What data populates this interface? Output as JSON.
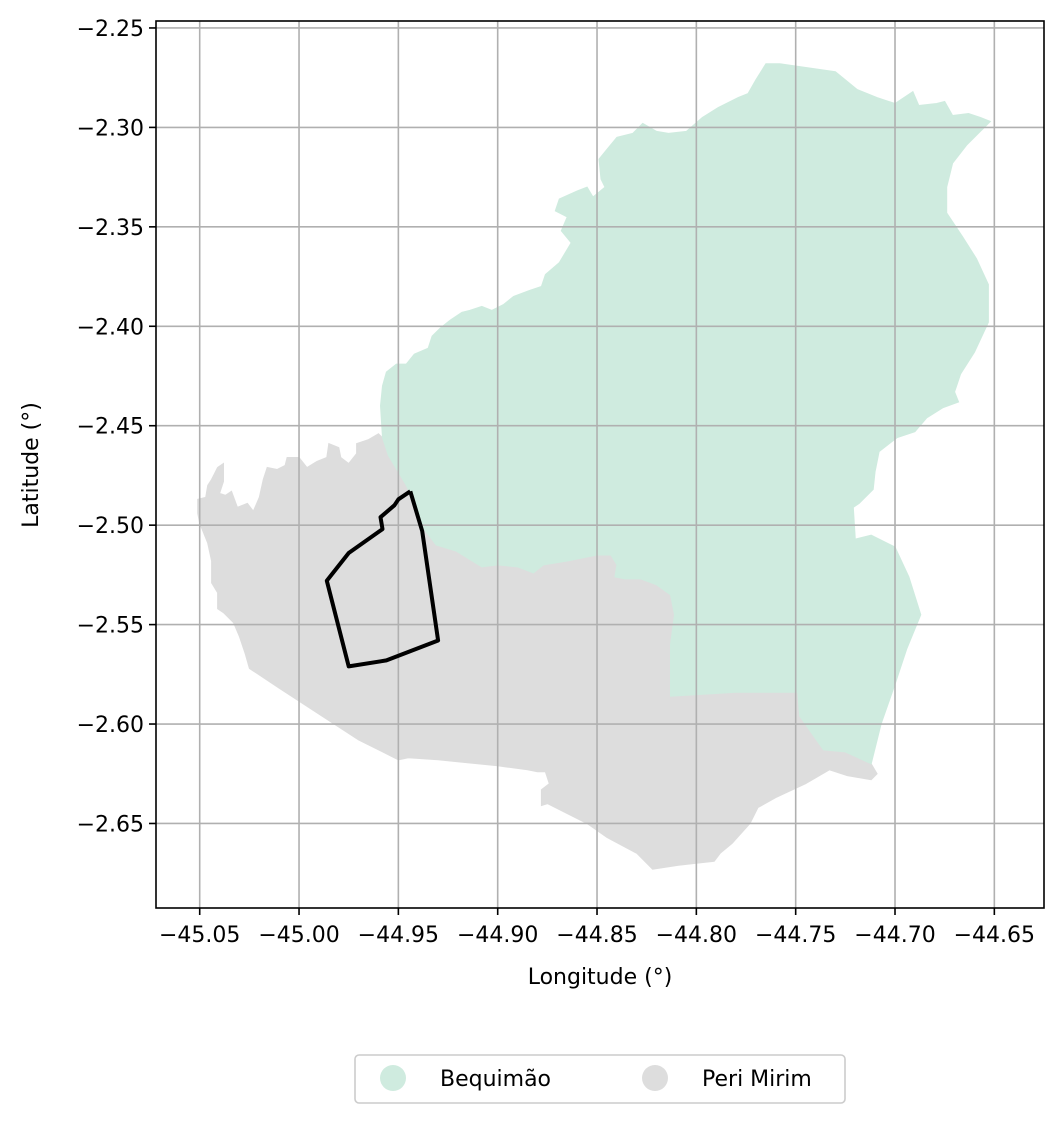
{
  "chart_data": {
    "type": "map",
    "xlabel": "Longitude (°)",
    "ylabel": "Latitude (°)",
    "xlim": [
      -45.072,
      -44.625
    ],
    "ylim": [
      -2.6925,
      -2.2465
    ],
    "grid": true,
    "x_ticks": [
      "−45.05",
      "−45.00",
      "−44.95",
      "−44.90",
      "−44.85",
      "−44.80",
      "−44.75",
      "−44.70",
      "−44.65"
    ],
    "y_ticks": [
      "−2.25",
      "−2.30",
      "−2.35",
      "−2.40",
      "−2.45",
      "−2.50",
      "−2.55",
      "−2.60",
      "−2.65"
    ],
    "legend": {
      "placement": "bottom-center",
      "items": [
        {
          "label": "Bequimão",
          "color": "#cfebdf"
        },
        {
          "label": "Peri Mirim",
          "color": "#dddddd"
        }
      ]
    },
    "regions": [
      {
        "name": "Peri Mirim",
        "color": "#dddddd",
        "coordinates": [
          [
            -45.051,
            -2.487
          ],
          [
            -45.047,
            -2.486
          ],
          [
            -45.046,
            -2.48
          ],
          [
            -45.044,
            -2.477
          ],
          [
            -45.041,
            -2.471
          ],
          [
            -45.038,
            -2.469
          ],
          [
            -45.038,
            -2.478
          ],
          [
            -45.04,
            -2.484
          ],
          [
            -45.037,
            -2.485
          ],
          [
            -45.034,
            -2.483
          ],
          [
            -45.031,
            -2.491
          ],
          [
            -45.026,
            -2.489
          ],
          [
            -45.023,
            -2.493
          ],
          [
            -45.02,
            -2.486
          ],
          [
            -45.018,
            -2.477
          ],
          [
            -45.016,
            -2.471
          ],
          [
            -45.011,
            -2.472
          ],
          [
            -45.007,
            -2.47
          ],
          [
            -45.006,
            -2.466
          ],
          [
            -45.0,
            -2.466
          ],
          [
            -44.996,
            -2.471
          ],
          [
            -44.991,
            -2.468
          ],
          [
            -44.986,
            -2.466
          ],
          [
            -44.985,
            -2.459
          ],
          [
            -44.98,
            -2.461
          ],
          [
            -44.979,
            -2.466
          ],
          [
            -44.975,
            -2.469
          ],
          [
            -44.971,
            -2.464
          ],
          [
            -44.971,
            -2.459
          ],
          [
            -44.965,
            -2.457
          ],
          [
            -44.96,
            -2.454
          ],
          [
            -44.956,
            -2.458
          ],
          [
            -44.952,
            -2.47
          ],
          [
            -44.946,
            -2.48
          ],
          [
            -44.941,
            -2.49
          ],
          [
            -44.937,
            -2.502
          ],
          [
            -44.931,
            -2.51
          ],
          [
            -44.921,
            -2.513
          ],
          [
            -44.908,
            -2.521
          ],
          [
            -44.9,
            -2.52
          ],
          [
            -44.89,
            -2.521
          ],
          [
            -44.882,
            -2.524
          ],
          [
            -44.877,
            -2.52
          ],
          [
            -44.865,
            -2.518
          ],
          [
            -44.85,
            -2.515
          ],
          [
            -44.843,
            -2.515
          ],
          [
            -44.84,
            -2.52
          ],
          [
            -44.841,
            -2.526
          ],
          [
            -44.836,
            -2.527
          ],
          [
            -44.828,
            -2.527
          ],
          [
            -44.82,
            -2.53
          ],
          [
            -44.813,
            -2.535
          ],
          [
            -44.811,
            -2.545
          ],
          [
            -44.813,
            -2.56
          ],
          [
            -44.813,
            -2.57
          ],
          [
            -44.813,
            -2.586
          ],
          [
            -44.78,
            -2.584
          ],
          [
            -44.749,
            -2.584
          ],
          [
            -44.748,
            -2.596
          ],
          [
            -44.741,
            -2.606
          ],
          [
            -44.736,
            -2.613
          ],
          [
            -44.725,
            -2.614
          ],
          [
            -44.712,
            -2.62
          ],
          [
            -44.709,
            -2.625
          ],
          [
            -44.712,
            -2.628
          ],
          [
            -44.724,
            -2.626
          ],
          [
            -44.733,
            -2.623
          ],
          [
            -44.745,
            -2.63
          ],
          [
            -44.76,
            -2.637
          ],
          [
            -44.769,
            -2.642
          ],
          [
            -44.773,
            -2.65
          ],
          [
            -44.782,
            -2.66
          ],
          [
            -44.788,
            -2.665
          ],
          [
            -44.791,
            -2.669
          ],
          [
            -44.8,
            -2.67
          ],
          [
            -44.809,
            -2.671
          ],
          [
            -44.822,
            -2.673
          ],
          [
            -44.83,
            -2.665
          ],
          [
            -44.845,
            -2.657
          ],
          [
            -44.855,
            -2.65
          ],
          [
            -44.865,
            -2.645
          ],
          [
            -44.875,
            -2.64
          ],
          [
            -44.878,
            -2.641
          ],
          [
            -44.878,
            -2.633
          ],
          [
            -44.874,
            -2.63
          ],
          [
            -44.876,
            -2.624
          ],
          [
            -44.88,
            -2.624
          ],
          [
            -44.885,
            -2.623
          ],
          [
            -44.9,
            -2.621
          ],
          [
            -44.93,
            -2.618
          ],
          [
            -44.945,
            -2.617
          ],
          [
            -44.95,
            -2.618
          ],
          [
            -44.97,
            -2.608
          ],
          [
            -44.99,
            -2.595
          ],
          [
            -45.01,
            -2.582
          ],
          [
            -45.025,
            -2.572
          ],
          [
            -45.027,
            -2.565
          ],
          [
            -45.03,
            -2.556
          ],
          [
            -45.033,
            -2.549
          ],
          [
            -45.036,
            -2.546
          ],
          [
            -45.038,
            -2.544
          ],
          [
            -45.041,
            -2.542
          ],
          [
            -45.041,
            -2.534
          ],
          [
            -45.044,
            -2.529
          ],
          [
            -45.044,
            -2.518
          ],
          [
            -45.046,
            -2.509
          ],
          [
            -45.05,
            -2.499
          ],
          [
            -45.051,
            -2.494
          ]
        ]
      },
      {
        "name": "Bequimão",
        "color": "#cfebdf",
        "coordinates": [
          [
            -44.955,
            -2.465
          ],
          [
            -44.958,
            -2.456
          ],
          [
            -44.959,
            -2.44
          ],
          [
            -44.958,
            -2.43
          ],
          [
            -44.956,
            -2.423
          ],
          [
            -44.951,
            -2.419
          ],
          [
            -44.946,
            -2.419
          ],
          [
            -44.942,
            -2.414
          ],
          [
            -44.935,
            -2.411
          ],
          [
            -44.933,
            -2.405
          ],
          [
            -44.929,
            -2.401
          ],
          [
            -44.924,
            -2.397
          ],
          [
            -44.918,
            -2.393
          ],
          [
            -44.914,
            -2.392
          ],
          [
            -44.908,
            -2.39
          ],
          [
            -44.903,
            -2.392
          ],
          [
            -44.897,
            -2.389
          ],
          [
            -44.892,
            -2.385
          ],
          [
            -44.884,
            -2.382
          ],
          [
            -44.878,
            -2.38
          ],
          [
            -44.876,
            -2.374
          ],
          [
            -44.869,
            -2.368
          ],
          [
            -44.863,
            -2.358
          ],
          [
            -44.868,
            -2.352
          ],
          [
            -44.865,
            -2.345
          ],
          [
            -44.871,
            -2.342
          ],
          [
            -44.869,
            -2.336
          ],
          [
            -44.86,
            -2.332
          ],
          [
            -44.855,
            -2.33
          ],
          [
            -44.852,
            -2.335
          ],
          [
            -44.846,
            -2.33
          ],
          [
            -44.848,
            -2.326
          ],
          [
            -44.849,
            -2.316
          ],
          [
            -44.845,
            -2.311
          ],
          [
            -44.84,
            -2.305
          ],
          [
            -44.832,
            -2.303
          ],
          [
            -44.827,
            -2.298
          ],
          [
            -44.82,
            -2.302
          ],
          [
            -44.814,
            -2.303
          ],
          [
            -44.805,
            -2.302
          ],
          [
            -44.797,
            -2.295
          ],
          [
            -44.789,
            -2.29
          ],
          [
            -44.779,
            -2.285
          ],
          [
            -44.774,
            -2.283
          ],
          [
            -44.77,
            -2.276
          ],
          [
            -44.765,
            -2.268
          ],
          [
            -44.758,
            -2.268
          ],
          [
            -44.744,
            -2.27
          ],
          [
            -44.73,
            -2.272
          ],
          [
            -44.719,
            -2.281
          ],
          [
            -44.709,
            -2.285
          ],
          [
            -44.7,
            -2.288
          ],
          [
            -44.691,
            -2.282
          ],
          [
            -44.688,
            -2.289
          ],
          [
            -44.679,
            -2.288
          ],
          [
            -44.675,
            -2.287
          ],
          [
            -44.671,
            -2.294
          ],
          [
            -44.663,
            -2.293
          ],
          [
            -44.657,
            -2.295
          ],
          [
            -44.652,
            -2.297
          ],
          [
            -44.664,
            -2.309
          ],
          [
            -44.671,
            -2.318
          ],
          [
            -44.674,
            -2.33
          ],
          [
            -44.674,
            -2.343
          ],
          [
            -44.666,
            -2.355
          ],
          [
            -44.659,
            -2.366
          ],
          [
            -44.653,
            -2.379
          ],
          [
            -44.653,
            -2.398
          ],
          [
            -44.66,
            -2.413
          ],
          [
            -44.667,
            -2.424
          ],
          [
            -44.67,
            -2.433
          ],
          [
            -44.668,
            -2.438
          ],
          [
            -44.676,
            -2.441
          ],
          [
            -44.684,
            -2.446
          ],
          [
            -44.69,
            -2.453
          ],
          [
            -44.699,
            -2.456
          ],
          [
            -44.708,
            -2.463
          ],
          [
            -44.71,
            -2.473
          ],
          [
            -44.711,
            -2.482
          ],
          [
            -44.718,
            -2.489
          ],
          [
            -44.721,
            -2.491
          ],
          [
            -44.72,
            -2.507
          ],
          [
            -44.712,
            -2.505
          ],
          [
            -44.7,
            -2.511
          ],
          [
            -44.693,
            -2.526
          ],
          [
            -44.687,
            -2.545
          ],
          [
            -44.694,
            -2.562
          ],
          [
            -44.7,
            -2.58
          ],
          [
            -44.707,
            -2.6
          ],
          [
            -44.712,
            -2.62
          ],
          [
            -44.725,
            -2.614
          ],
          [
            -44.736,
            -2.613
          ],
          [
            -44.741,
            -2.606
          ],
          [
            -44.748,
            -2.596
          ],
          [
            -44.749,
            -2.584
          ],
          [
            -44.78,
            -2.584
          ],
          [
            -44.813,
            -2.586
          ],
          [
            -44.813,
            -2.57
          ],
          [
            -44.813,
            -2.56
          ],
          [
            -44.811,
            -2.545
          ],
          [
            -44.813,
            -2.535
          ],
          [
            -44.82,
            -2.53
          ],
          [
            -44.828,
            -2.527
          ],
          [
            -44.836,
            -2.527
          ],
          [
            -44.841,
            -2.526
          ],
          [
            -44.84,
            -2.52
          ],
          [
            -44.843,
            -2.515
          ],
          [
            -44.85,
            -2.515
          ],
          [
            -44.865,
            -2.518
          ],
          [
            -44.877,
            -2.52
          ],
          [
            -44.882,
            -2.524
          ],
          [
            -44.89,
            -2.521
          ],
          [
            -44.9,
            -2.52
          ],
          [
            -44.908,
            -2.521
          ],
          [
            -44.921,
            -2.513
          ],
          [
            -44.931,
            -2.51
          ],
          [
            -44.937,
            -2.502
          ],
          [
            -44.941,
            -2.49
          ],
          [
            -44.946,
            -2.48
          ],
          [
            -44.952,
            -2.47
          ]
        ]
      }
    ],
    "outline": {
      "color": "#000000",
      "coordinates": [
        [
          -44.944,
          -2.483
        ],
        [
          -44.938,
          -2.503
        ],
        [
          -44.93,
          -2.558
        ],
        [
          -44.956,
          -2.568
        ],
        [
          -44.975,
          -2.571
        ],
        [
          -44.986,
          -2.528
        ],
        [
          -44.975,
          -2.514
        ],
        [
          -44.958,
          -2.502
        ],
        [
          -44.959,
          -2.496
        ],
        [
          -44.952,
          -2.49
        ],
        [
          -44.95,
          -2.487
        ]
      ]
    }
  }
}
